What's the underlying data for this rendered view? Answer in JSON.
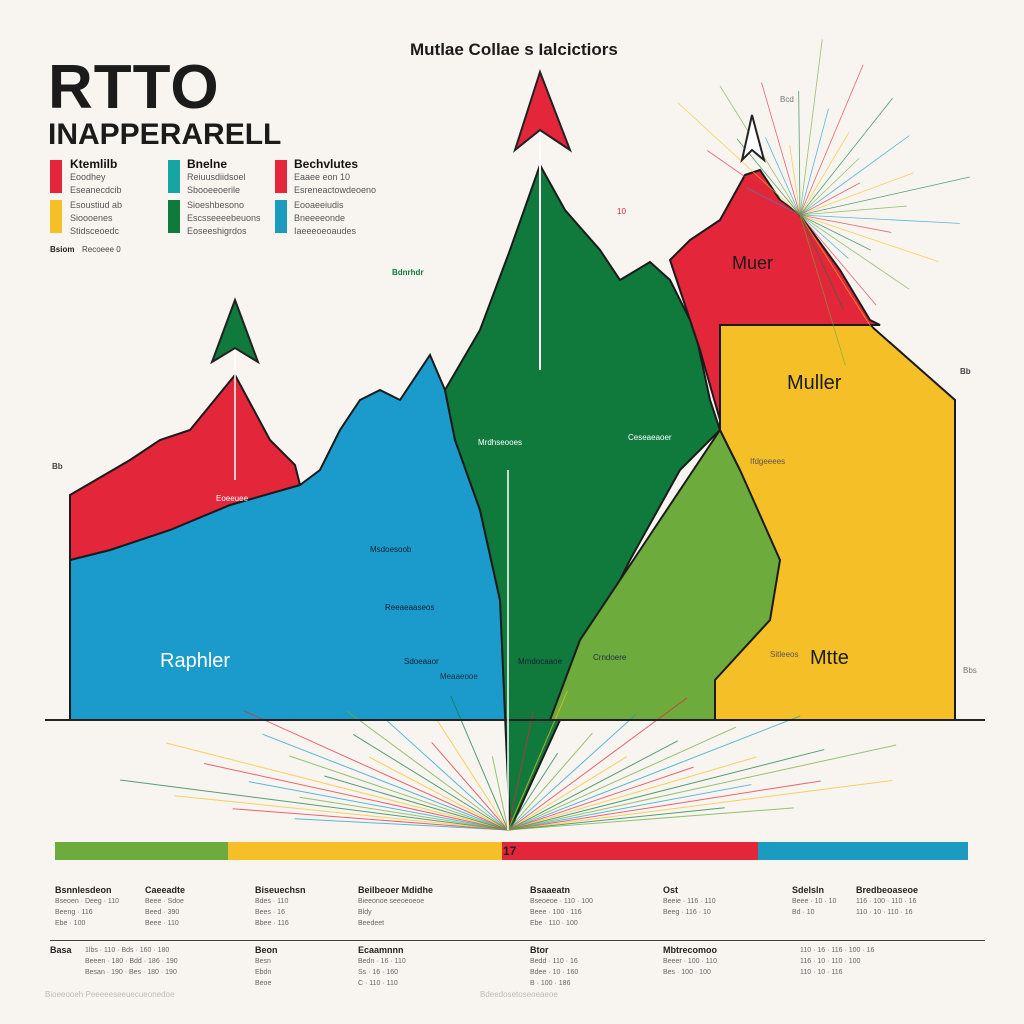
{
  "header": {
    "title": "RTTO",
    "subtitle": "INAPPERARELL",
    "caption": "Mutlae Collae s Ialcictiors"
  },
  "legend": [
    {
      "color": "#e3263a",
      "title": "Ktemlilb",
      "lines": [
        "Eoodhey",
        "Eseanecdcib"
      ]
    },
    {
      "color": "#f5c027",
      "title": "",
      "lines": [
        "Esoustiud ab",
        "Sioooenes",
        "Stidsceoedc"
      ]
    },
    {
      "color": "#16a5a2",
      "title": "Bnelne",
      "lines": [
        "Reiuusdiidsoel",
        "Sbooeeoerile"
      ]
    },
    {
      "color": "#0f7a3c",
      "title": "",
      "lines": [
        "Sioeshbesono",
        "Escsseeeebeuons",
        "Eoseeshigrdos"
      ]
    },
    {
      "color": "#e3263a",
      "title": "Bechvlutes",
      "lines": [
        "Eaaee eon 10",
        "Esreneactowdeoeno"
      ]
    },
    {
      "color": "#1a9bbf",
      "title": "",
      "lines": [
        "Eooaeeiudis",
        "Bneeeeonde",
        "Iaeeeoeoaudes"
      ]
    }
  ],
  "legend_note": [
    "Bsiom",
    "Recoeee 0"
  ],
  "chart_data": {
    "type": "area",
    "title": "",
    "regions": [
      {
        "label": "Raphler",
        "color": "#1a9bcc"
      },
      {
        "label": "",
        "color": "#e3263a"
      },
      {
        "label": "",
        "color": "#0f7a3c"
      },
      {
        "label": "",
        "color": "#6cab3c"
      },
      {
        "label": "Muller",
        "color": "#f5c027"
      },
      {
        "label": "Muer",
        "color": "#e3263a"
      },
      {
        "label": "Mtte",
        "color": "#f5c027"
      }
    ],
    "side_labels": [
      "Bb",
      "Bb"
    ],
    "annotations": [
      "Mrdhseooes",
      "Ceseaeaoer",
      "Msdoesoob",
      "Reeaeaaseos",
      "Sdoeaaor",
      "Mmdocaaoe",
      "Ifdgeeees",
      "Crndoere",
      "Bdnrhdr",
      "Eoeeuee",
      "Meaaeooe",
      "Sitleeos",
      "10",
      "Bcd",
      "Bbs"
    ],
    "bar_segments": [
      {
        "color": "#6cab3c",
        "share": 0.19
      },
      {
        "color": "#f5c027",
        "share": 0.3
      },
      {
        "color": "#e3263a",
        "share": 0.28
      },
      {
        "color": "#1a9bbf",
        "share": 0.23
      }
    ],
    "bar_label": "17"
  },
  "tables": {
    "row1_headers": [
      "Bsnnlesdeon",
      "Caeeadte",
      "Biseuechsn",
      "Beilbeoer Mdidhe",
      "Bsaaeatn",
      "Ost",
      "Sdelsln",
      "Bredbeoaseoe"
    ],
    "row2_headers": [
      "Basa",
      "Beon",
      "Ecaamnnn",
      "Btor",
      "Mbtrecomoo"
    ],
    "footer_left": "Bioeeooeh Peeeeeseeuecueonedoe",
    "footer_center": "Bdeedosetoseoeaeoe"
  }
}
